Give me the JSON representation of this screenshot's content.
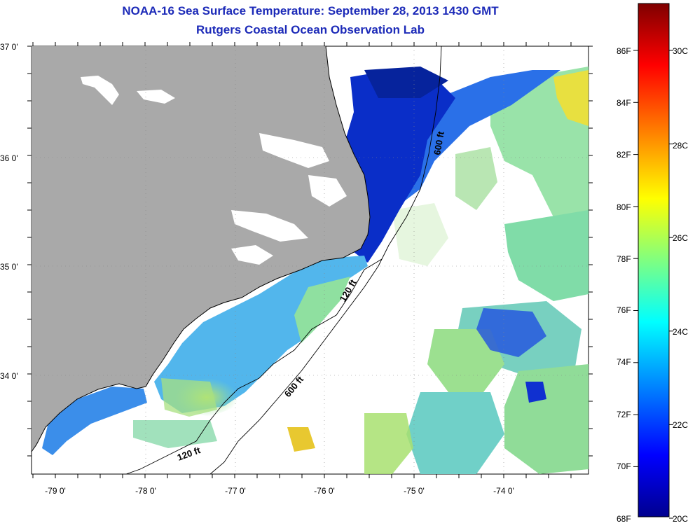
{
  "title": "NOAA-16 Sea Surface Temperature:  September 28, 2013 1430 GMT",
  "subtitle": "Rutgers Coastal Ocean Observation Lab",
  "axes": {
    "lat_labels": [
      "37 0'",
      "36 0'",
      "35 0'",
      "34 0'"
    ],
    "lon_labels": [
      "-79 0'",
      "-78 0'",
      "-77 0'",
      "-76 0'",
      "-75 0'",
      "-74 0'"
    ]
  },
  "contours": {
    "labels": [
      "600 ft",
      "120 ft",
      "600 ft",
      "120 ft"
    ]
  },
  "colorbar": {
    "fahrenheit": [
      "86F",
      "84F",
      "82F",
      "80F",
      "78F",
      "76F",
      "74F",
      "72F",
      "70F",
      "68F"
    ],
    "celsius": [
      "30C",
      "28C",
      "26C",
      "24C",
      "22C",
      "20C"
    ],
    "gradient": [
      "#7f0000",
      "#ff0000",
      "#ff8000",
      "#ffff00",
      "#80ff80",
      "#00ffff",
      "#0080ff",
      "#0000ff",
      "#00008f"
    ]
  },
  "colors": {
    "title": "#1c2ab8",
    "land": "#a9a9a9",
    "cold_water": "#0a2ed0",
    "cool_water": "#3fa0f0",
    "mild_water": "#70d8d8",
    "warm_water": "#b8e860"
  }
}
